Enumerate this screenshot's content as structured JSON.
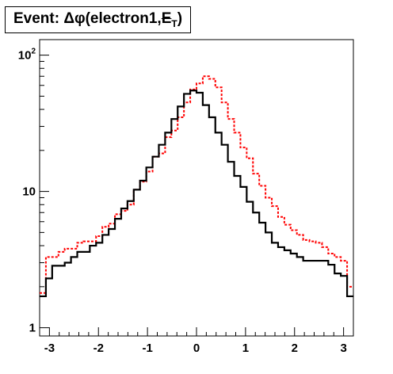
{
  "title": {
    "prefix": "Event: ",
    "delta": "Δ",
    "phi": "φ",
    "args": "(electron1,",
    "met_symbol": "E",
    "met_subscript": "T",
    "close": ")"
  },
  "chart_data": {
    "type": "step-histogram",
    "title": "Event: Δφ(electron1,E̸T)",
    "xlabel": "",
    "ylabel": "",
    "xlim": [
      -3.2,
      3.2
    ],
    "ylim": [
      0.87,
      130
    ],
    "yscale": "log",
    "grid": false,
    "x_ticks": [
      "-3",
      "-2",
      "-1",
      "0",
      "1",
      "2",
      "3"
    ],
    "y_ticks": [
      {
        "label": "1",
        "value": 1
      },
      {
        "label": "10",
        "value": 10
      },
      {
        "label": "10",
        "sup": "2",
        "value": 100
      }
    ],
    "bins": {
      "min": -3.2,
      "max": 3.2,
      "count": 50
    },
    "series": [
      {
        "color": "#000000",
        "style": "solid",
        "values": [
          1.7,
          2.3,
          2.85,
          2.85,
          3.0,
          3.3,
          3.6,
          3.6,
          4.0,
          4.2,
          4.8,
          5.3,
          6.3,
          7.5,
          8.5,
          10.3,
          12.0,
          15.0,
          18.0,
          22.0,
          27.0,
          34.0,
          42.0,
          52.0,
          55.0,
          53.0,
          43.0,
          35.0,
          27.0,
          22.0,
          16.5,
          13.0,
          10.8,
          8.4,
          7.0,
          5.9,
          5.0,
          4.2,
          3.9,
          3.7,
          3.5,
          3.3,
          3.1,
          3.1,
          3.1,
          3.1,
          2.9,
          2.5,
          2.4,
          1.7
        ]
      },
      {
        "color": "#ff0000",
        "style": "dashed",
        "values": [
          1.8,
          3.3,
          3.3,
          3.6,
          3.8,
          3.8,
          4.2,
          4.3,
          4.3,
          4.7,
          5.5,
          5.8,
          6.8,
          7.2,
          8.0,
          10.3,
          11.8,
          14.0,
          18.0,
          19.0,
          25.0,
          28.0,
          35.0,
          45.0,
          56.0,
          62.0,
          70.0,
          67.0,
          58.0,
          45.0,
          34.0,
          27.0,
          21.0,
          17.5,
          13.5,
          11.0,
          9.0,
          7.8,
          6.5,
          5.7,
          5.2,
          4.8,
          4.4,
          4.3,
          4.2,
          3.9,
          3.5,
          3.3,
          3.1,
          2.0
        ]
      }
    ]
  }
}
